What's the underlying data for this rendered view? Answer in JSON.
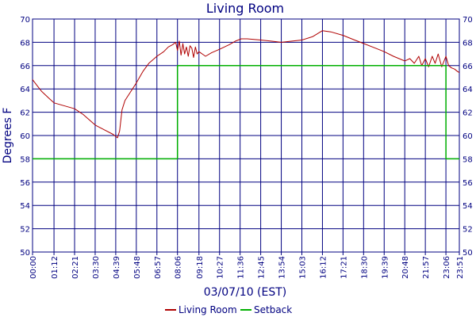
{
  "chart_data": {
    "type": "line",
    "title": "Living Room",
    "xlabel": "03/07/10 (EST)",
    "ylabel": "Degrees F",
    "ylim": [
      50,
      70
    ],
    "yticks": [
      50,
      52,
      54,
      56,
      58,
      60,
      62,
      64,
      66,
      68,
      70
    ],
    "xlim": [
      0,
      1431
    ],
    "xtick_labels": [
      "00:00",
      "01:12",
      "02:21",
      "03:30",
      "04:39",
      "05:48",
      "06:57",
      "08:06",
      "09:18",
      "10:27",
      "11:36",
      "12:45",
      "13:54",
      "15:03",
      "16:12",
      "17:21",
      "18:30",
      "19:39",
      "20:48",
      "21:57",
      "23:06",
      "23:51"
    ],
    "xtick_minutes": [
      0,
      72,
      141,
      210,
      279,
      348,
      417,
      486,
      558,
      627,
      696,
      765,
      834,
      903,
      972,
      1041,
      1110,
      1179,
      1248,
      1317,
      1386,
      1431
    ],
    "grid": true,
    "legend_position": "bottom-center",
    "colors": {
      "title": "#000080",
      "axis": "#000080",
      "grid": "#000080",
      "living_room": "#b00000",
      "setback": "#00b000"
    },
    "series": [
      {
        "name": "Living Room",
        "x": [
          0,
          15,
          30,
          55,
          72,
          100,
          141,
          170,
          210,
          240,
          270,
          285,
          292,
          300,
          310,
          330,
          348,
          370,
          390,
          417,
          440,
          455,
          470,
          480,
          486,
          492,
          498,
          504,
          510,
          516,
          522,
          528,
          534,
          540,
          546,
          552,
          558,
          580,
          600,
          627,
          660,
          680,
          700,
          720,
          765,
          800,
          834,
          870,
          903,
          940,
          972,
          1000,
          1041,
          1080,
          1110,
          1150,
          1179,
          1210,
          1248,
          1265,
          1280,
          1295,
          1305,
          1317,
          1328,
          1340,
          1350,
          1360,
          1372,
          1386,
          1395,
          1405,
          1415,
          1425,
          1431
        ],
        "values": [
          64.8,
          64.3,
          63.8,
          63.2,
          62.8,
          62.6,
          62.3,
          61.8,
          60.9,
          60.5,
          60.1,
          59.8,
          60.4,
          62.2,
          63.0,
          63.8,
          64.5,
          65.5,
          66.2,
          66.8,
          67.2,
          67.6,
          67.8,
          68.0,
          67.3,
          68.1,
          66.9,
          67.9,
          67.0,
          67.6,
          66.8,
          67.7,
          67.5,
          66.7,
          67.6,
          67.0,
          67.2,
          66.8,
          67.1,
          67.4,
          67.8,
          68.1,
          68.3,
          68.3,
          68.2,
          68.1,
          68.0,
          68.1,
          68.2,
          68.5,
          69.0,
          68.9,
          68.6,
          68.2,
          67.9,
          67.5,
          67.2,
          66.8,
          66.4,
          66.6,
          66.2,
          66.8,
          66.0,
          66.6,
          65.9,
          66.8,
          66.2,
          67.0,
          65.9,
          66.8,
          66.0,
          65.8,
          65.7,
          65.5,
          65.4
        ]
      },
      {
        "name": "Setback",
        "x": [
          0,
          486,
          486,
          1386,
          1386,
          1431
        ],
        "values": [
          58,
          58,
          66,
          66,
          58,
          58
        ]
      }
    ]
  }
}
